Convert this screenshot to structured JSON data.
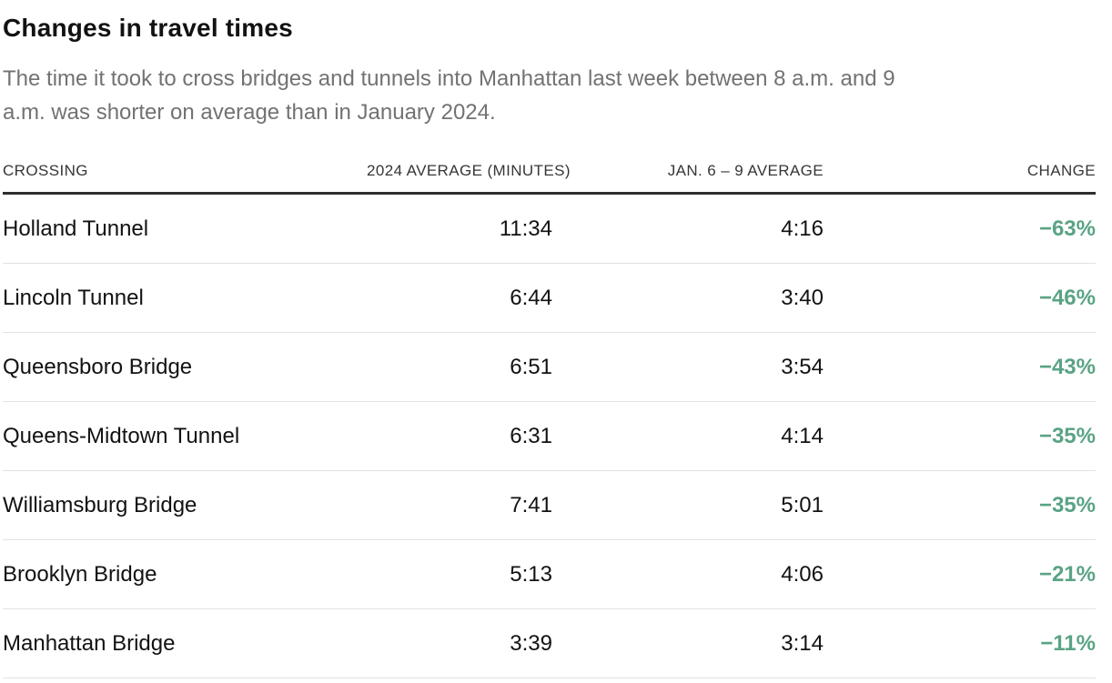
{
  "header": {
    "title": "Changes in travel times",
    "subtitle_lines": [
      "The time it took to cross bridges and tunnels into Manhattan last week between 8 a.m. and 9",
      "a.m. was shorter on average than in January 2024."
    ]
  },
  "table": {
    "columns": [
      "CROSSING",
      "2024 AVERAGE (MINUTES)",
      "JAN. 6 – 9 AVERAGE",
      "CHANGE"
    ],
    "rows": [
      {
        "crossing": "Holland Tunnel",
        "avg_2024_minutes": "11:34",
        "jan_6_9_avg": "4:16",
        "change": "−63%"
      },
      {
        "crossing": "Lincoln Tunnel",
        "avg_2024_minutes": "6:44",
        "jan_6_9_avg": "3:40",
        "change": "−46%"
      },
      {
        "crossing": "Queensboro Bridge",
        "avg_2024_minutes": "6:51",
        "jan_6_9_avg": "3:54",
        "change": "−43%"
      },
      {
        "crossing": "Queens-Midtown Tunnel",
        "avg_2024_minutes": "6:31",
        "jan_6_9_avg": "4:14",
        "change": "−35%"
      },
      {
        "crossing": "Williamsburg Bridge",
        "avg_2024_minutes": "7:41",
        "jan_6_9_avg": "5:01",
        "change": "−35%"
      },
      {
        "crossing": "Brooklyn Bridge",
        "avg_2024_minutes": "5:13",
        "jan_6_9_avg": "4:06",
        "change": "−21%"
      },
      {
        "crossing": "Manhattan Bridge",
        "avg_2024_minutes": "3:39",
        "jan_6_9_avg": "3:14",
        "change": "−11%"
      }
    ]
  },
  "colors": {
    "change_green": "#5aa384",
    "title_text": "#121212",
    "subtitle_text": "#727272",
    "header_text": "#363636",
    "header_rule_dark": "#2e2e2e",
    "row_divider": "#e2e2e2",
    "background": "#ffffff"
  },
  "chart_data": {
    "type": "table",
    "title": "Changes in travel times",
    "subtitle": "The time it took to cross bridges and tunnels into Manhattan last week between 8 a.m. and 9 a.m. was shorter on average than in January 2024.",
    "columns": [
      "CROSSING",
      "2024 AVERAGE (MINUTES)",
      "JAN. 6 – 9 AVERAGE",
      "CHANGE"
    ],
    "rows": [
      [
        "Holland Tunnel",
        "11:34",
        "4:16",
        "−63%"
      ],
      [
        "Lincoln Tunnel",
        "6:44",
        "3:40",
        "−46%"
      ],
      [
        "Queensboro Bridge",
        "6:51",
        "3:54",
        "−43%"
      ],
      [
        "Queens-Midtown Tunnel",
        "6:31",
        "4:14",
        "−35%"
      ],
      [
        "Williamsburg Bridge",
        "7:41",
        "5:01",
        "−35%"
      ],
      [
        "Brooklyn Bridge",
        "5:13",
        "4:06",
        "−21%"
      ],
      [
        "Manhattan Bridge",
        "3:39",
        "3:14",
        "−11%"
      ]
    ],
    "change_percent": [
      -63,
      -46,
      -43,
      -35,
      -35,
      -21,
      -11
    ],
    "layout_hints": {
      "first_column_align": "left",
      "other_columns_align": "right",
      "change_column_color": "green-bold",
      "header_rule": "thick-dark",
      "row_dividers": "thin-light-gray"
    }
  }
}
